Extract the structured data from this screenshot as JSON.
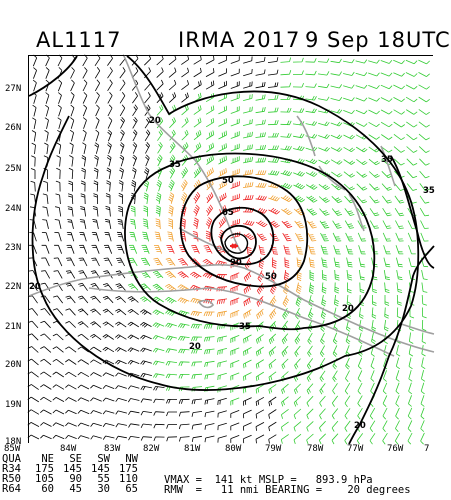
{
  "header": {
    "storm_id": "AL1117",
    "storm_name_year": "IRMA 2017",
    "date_time": "9 Sep 18UTC"
  },
  "map": {
    "lat_labels": [
      "27N",
      "26N",
      "25N",
      "24N",
      "23N",
      "22N",
      "21N",
      "20N",
      "19N",
      "18N"
    ],
    "lon_labels": [
      "85W",
      "84W",
      "83W",
      "82W",
      "81W",
      "80W",
      "79W",
      "78W",
      "77W",
      "76W",
      "7"
    ],
    "contours": [
      {
        "label": "20",
        "color": "#000000"
      },
      {
        "label": "35",
        "color": "#000000"
      },
      {
        "label": "50",
        "color": "#000000"
      },
      {
        "label": "65",
        "color": "#000000"
      },
      {
        "label": "90",
        "color": "#000000"
      }
    ],
    "contour_labels_extra": [
      "20",
      "20",
      "35",
      "35",
      "35",
      "50",
      "20"
    ],
    "colors": {
      "calm_barbs": "#000000",
      "gale_barbs": "#33cc33",
      "storm_barbs": "#f0a030",
      "hurricane_barbs": "#ee2222",
      "coastline": "#a0a0a0",
      "center_marker": "#ee2222"
    }
  },
  "stats": {
    "table": {
      "header": [
        "QUA",
        "NE",
        "SE",
        "SW",
        "NW"
      ],
      "rows": [
        [
          "R34",
          "175",
          "145",
          "145",
          "175"
        ],
        [
          "R50",
          "105",
          "90",
          "55",
          "110"
        ],
        [
          "R64",
          "60",
          "45",
          "30",
          "65"
        ]
      ]
    },
    "line1": "VMAX =  141 kt MSLP =   893.9 hPa",
    "line2": "RMW  =   11 nmi BEARING =    20 degrees"
  }
}
